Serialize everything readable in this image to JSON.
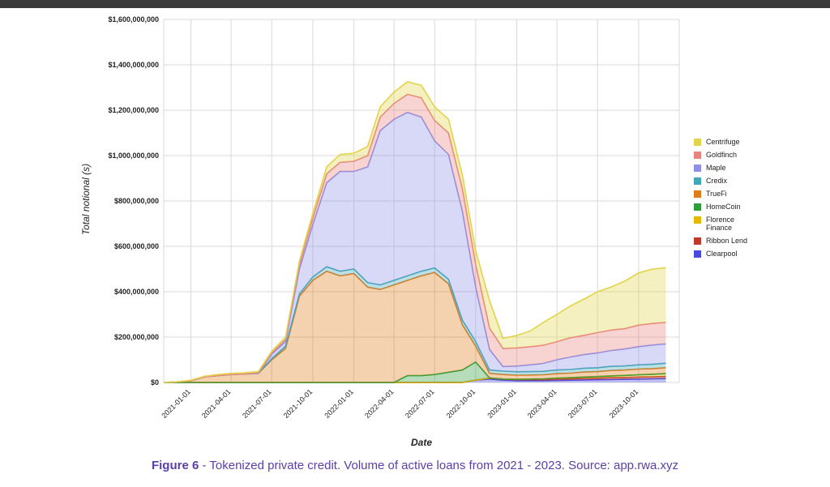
{
  "caption": {
    "figure": "Figure 6",
    "separator": " - ",
    "text": "Tokenized private credit. Volume of active loans from 2021 - 2023. Source: app.rwa.xyz"
  },
  "chart_data": {
    "type": "area",
    "stacked": true,
    "title": "",
    "xlabel": "Date",
    "ylabel": "Total notional (s)",
    "x_ticks": [
      "2021-01-01",
      "2021-04-01",
      "2021-07-01",
      "2021-10-01",
      "2022-01-01",
      "2022-04-01",
      "2022-07-01",
      "2022-10-01",
      "2023-01-01",
      "2023-04-01",
      "2023-07-01",
      "2023-10-01"
    ],
    "y_ticks": [
      "$0",
      "$200,000,000",
      "$400,000,000",
      "$600,000,000",
      "$800,000,000",
      "$1,000,000,000",
      "$1,200,000,000",
      "$1,400,000,000",
      "$1,600,000,000"
    ],
    "ylim": [
      0,
      1600000000
    ],
    "x_range": [
      "2020-11-01",
      "2023-12-31"
    ],
    "grid": true,
    "legend_position": "right",
    "x": [
      "2020-11-01",
      "2020-12-01",
      "2021-01-01",
      "2021-02-01",
      "2021-03-01",
      "2021-04-01",
      "2021-05-01",
      "2021-06-01",
      "2021-07-01",
      "2021-08-01",
      "2021-09-01",
      "2021-10-01",
      "2021-11-01",
      "2021-12-01",
      "2022-01-01",
      "2022-02-01",
      "2022-03-01",
      "2022-04-01",
      "2022-05-01",
      "2022-06-01",
      "2022-07-01",
      "2022-08-01",
      "2022-09-01",
      "2022-10-01",
      "2022-11-01",
      "2022-12-01",
      "2023-01-01",
      "2023-02-01",
      "2023-03-01",
      "2023-04-01",
      "2023-05-01",
      "2023-06-01",
      "2023-07-01",
      "2023-08-01",
      "2023-09-01",
      "2023-10-01",
      "2023-11-01",
      "2023-12-01"
    ],
    "series": [
      {
        "name": "Clearpool",
        "color": "#4a4ae0",
        "values": [
          0,
          0,
          0,
          0,
          0,
          0,
          0,
          0,
          0,
          0,
          0,
          0,
          0,
          0,
          0,
          0,
          0,
          0,
          0,
          0,
          0,
          0,
          0,
          10000000,
          15000000,
          10000000,
          8000000,
          8000000,
          8000000,
          9000000,
          10000000,
          11000000,
          12000000,
          13000000,
          14000000,
          15000000,
          16000000,
          17000000
        ]
      },
      {
        "name": "Ribbon Lend",
        "color": "#c0392b",
        "values": [
          0,
          0,
          0,
          0,
          0,
          0,
          0,
          0,
          0,
          0,
          0,
          0,
          0,
          0,
          0,
          0,
          0,
          0,
          0,
          0,
          0,
          0,
          0,
          0,
          5000000,
          5000000,
          5000000,
          5000000,
          5000000,
          6000000,
          6000000,
          7000000,
          7000000,
          8000000,
          8000000,
          9000000,
          9000000,
          10000000
        ]
      },
      {
        "name": "Florence Finance",
        "color": "#e6b800",
        "values": [
          0,
          0,
          0,
          0,
          0,
          0,
          0,
          0,
          0,
          0,
          0,
          0,
          0,
          0,
          0,
          0,
          0,
          0,
          0,
          0,
          0,
          0,
          0,
          0,
          0,
          0,
          1000000,
          2000000,
          3000000,
          4000000,
          5000000,
          6000000,
          7000000,
          8000000,
          9000000,
          10000000,
          11000000,
          12000000
        ]
      },
      {
        "name": "HomeCoin",
        "color": "#2e9e3a",
        "values": [
          0,
          0,
          0,
          0,
          0,
          0,
          0,
          0,
          0,
          0,
          0,
          0,
          0,
          0,
          0,
          0,
          0,
          0,
          30000000,
          30000000,
          35000000,
          45000000,
          55000000,
          80000000,
          0,
          0,
          0,
          0,
          0,
          0,
          0,
          0,
          0,
          0,
          0,
          0,
          0,
          0
        ]
      },
      {
        "name": "TrueFi",
        "color": "#e07b1a",
        "values": [
          0,
          3000000,
          8000000,
          25000000,
          30000000,
          35000000,
          38000000,
          40000000,
          100000000,
          150000000,
          380000000,
          450000000,
          490000000,
          470000000,
          480000000,
          420000000,
          410000000,
          430000000,
          420000000,
          440000000,
          450000000,
          390000000,
          200000000,
          70000000,
          20000000,
          20000000,
          18000000,
          18000000,
          18000000,
          20000000,
          20000000,
          22000000,
          22000000,
          24000000,
          24000000,
          25000000,
          25000000,
          26000000
        ]
      },
      {
        "name": "Credix",
        "color": "#3fa7b5",
        "values": [
          0,
          0,
          0,
          0,
          0,
          0,
          0,
          0,
          5000000,
          10000000,
          10000000,
          15000000,
          20000000,
          20000000,
          20000000,
          20000000,
          20000000,
          20000000,
          20000000,
          20000000,
          20000000,
          20000000,
          20000000,
          20000000,
          15000000,
          15000000,
          15000000,
          15000000,
          15000000,
          16000000,
          16000000,
          17000000,
          17000000,
          18000000,
          18000000,
          19000000,
          19000000,
          20000000
        ]
      },
      {
        "name": "Maple",
        "color": "#8f8fe8",
        "values": [
          0,
          0,
          0,
          0,
          0,
          0,
          0,
          0,
          20000000,
          20000000,
          110000000,
          230000000,
          370000000,
          440000000,
          430000000,
          510000000,
          680000000,
          710000000,
          720000000,
          680000000,
          560000000,
          550000000,
          480000000,
          240000000,
          90000000,
          20000000,
          25000000,
          30000000,
          35000000,
          45000000,
          55000000,
          60000000,
          65000000,
          70000000,
          75000000,
          80000000,
          85000000,
          85000000
        ]
      },
      {
        "name": "Goldfinch",
        "color": "#e8837e",
        "values": [
          0,
          0,
          0,
          0,
          0,
          0,
          0,
          2000000,
          5000000,
          10000000,
          20000000,
          30000000,
          40000000,
          40000000,
          45000000,
          50000000,
          60000000,
          70000000,
          80000000,
          85000000,
          90000000,
          95000000,
          100000000,
          100000000,
          95000000,
          80000000,
          80000000,
          80000000,
          80000000,
          80000000,
          85000000,
          85000000,
          90000000,
          90000000,
          90000000,
          95000000,
          95000000,
          95000000
        ]
      },
      {
        "name": "Centrifuge",
        "color": "#e2d44a",
        "values": [
          0,
          0,
          2000000,
          3000000,
          5000000,
          5000000,
          5000000,
          6000000,
          8000000,
          10000000,
          15000000,
          20000000,
          30000000,
          35000000,
          35000000,
          40000000,
          45000000,
          50000000,
          55000000,
          55000000,
          60000000,
          60000000,
          60000000,
          60000000,
          120000000,
          45000000,
          55000000,
          70000000,
          100000000,
          120000000,
          140000000,
          160000000,
          180000000,
          190000000,
          210000000,
          230000000,
          240000000,
          240000000
        ]
      }
    ]
  }
}
